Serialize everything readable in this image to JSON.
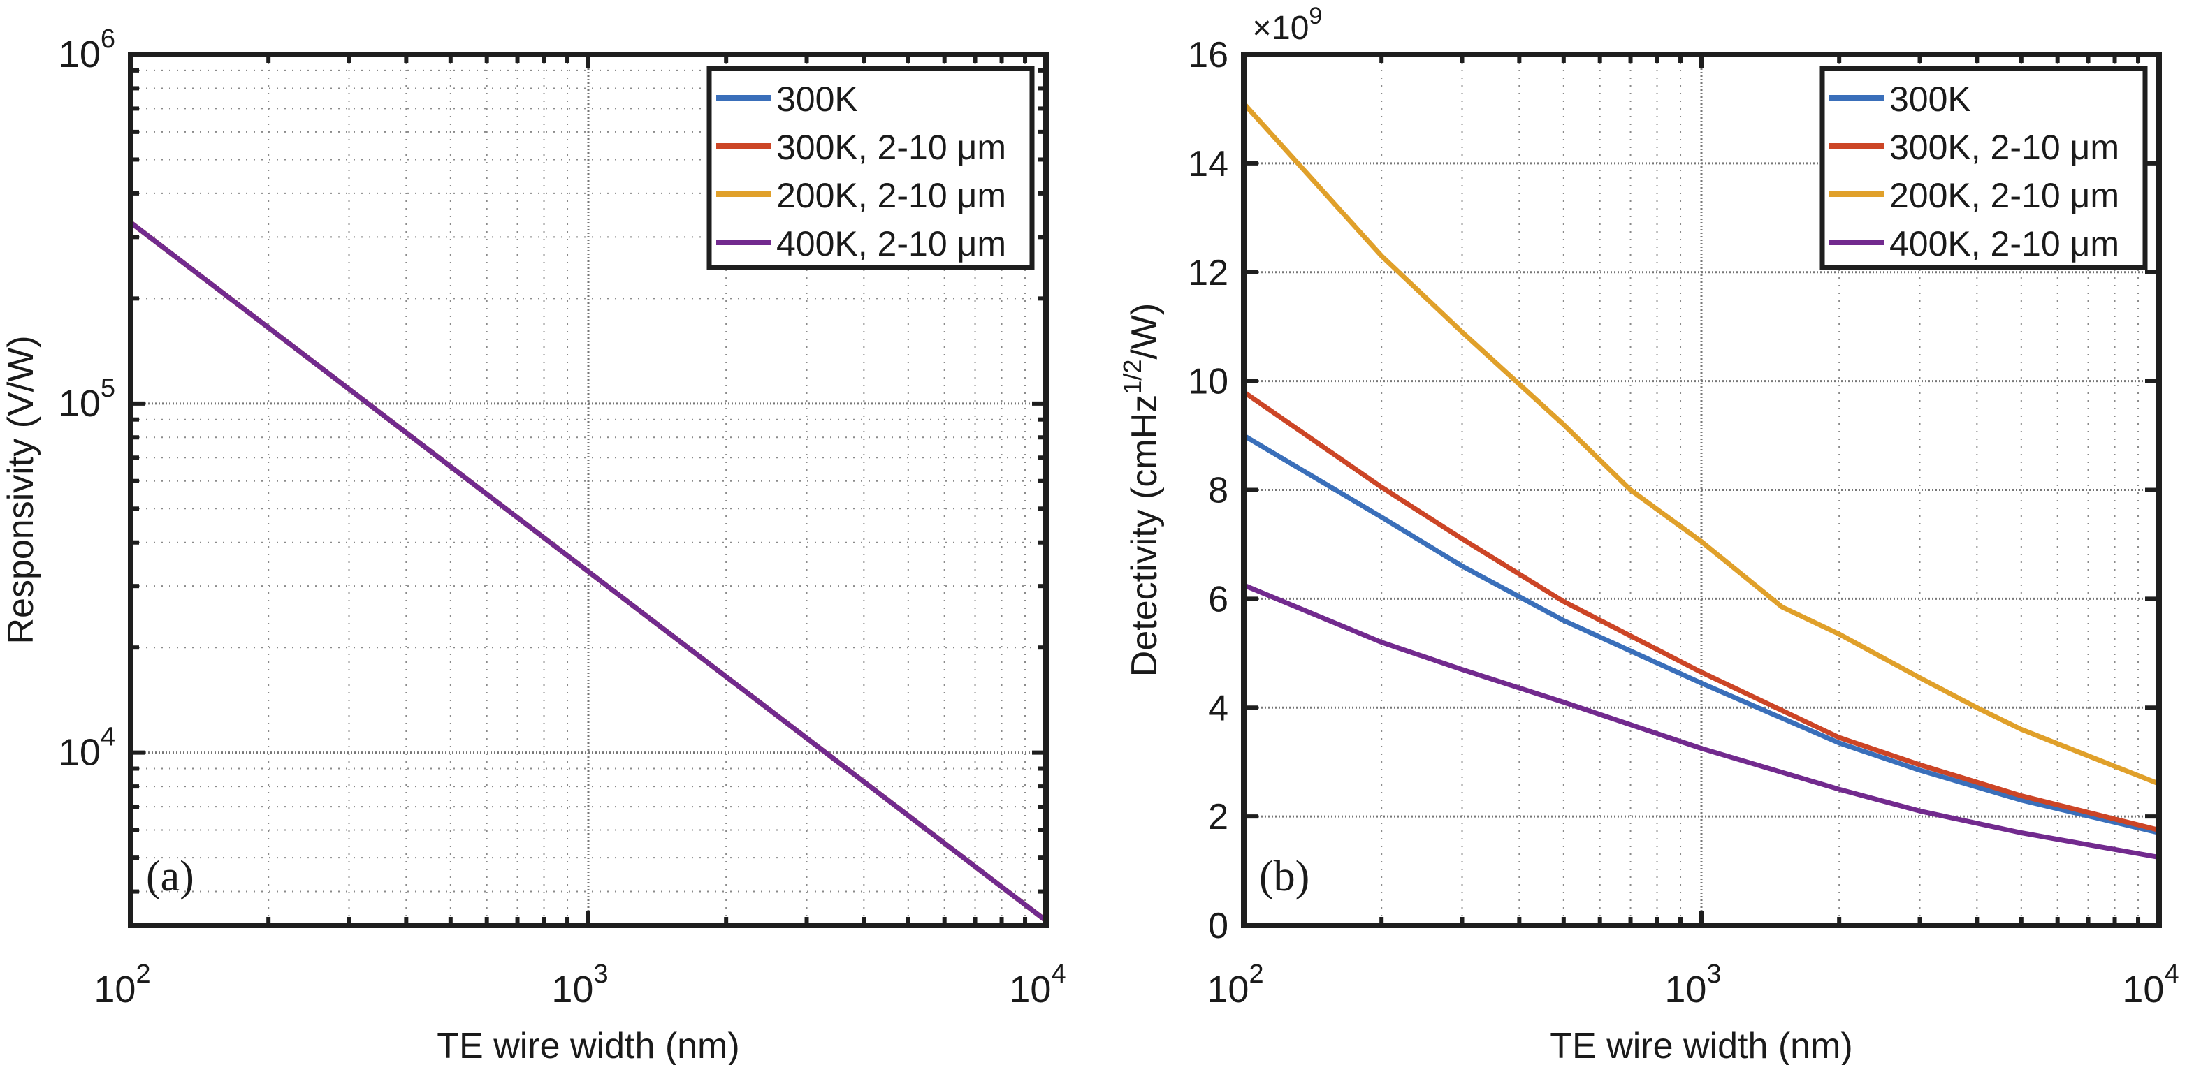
{
  "figure": {
    "panels": [
      "a",
      "b"
    ]
  },
  "chart_data": [
    {
      "type": "line",
      "panel_label": "(a)",
      "title": "",
      "xlabel": "TE wire width (nm)",
      "ylabel": "Responsivity  (V/W)",
      "xscale": "log",
      "yscale": "log",
      "xlim": [
        100,
        10000
      ],
      "ylim": [
        3200,
        1000000
      ],
      "x_ticks": [
        {
          "value": 100,
          "base": "10",
          "exp": "2"
        },
        {
          "value": 1000,
          "base": "10",
          "exp": "3"
        },
        {
          "value": 10000,
          "base": "10",
          "exp": "4"
        }
      ],
      "y_ticks": [
        {
          "value": 10000,
          "base": "10",
          "exp": "4"
        },
        {
          "value": 100000,
          "base": "10",
          "exp": "5"
        },
        {
          "value": 1000000,
          "base": "10",
          "exp": "6"
        }
      ],
      "grid": true,
      "minor_grid": true,
      "legend_position": "top-right",
      "legend": [
        {
          "label": "300K",
          "color": "#3a6fba"
        },
        {
          "label": "300K, 2-10  μm",
          "color": "#cc4526"
        },
        {
          "label": "200K, 2-10  μm",
          "color": "#e0a02a"
        },
        {
          "label": "400K, 2-10  μm",
          "color": "#722a8e"
        }
      ],
      "series": [
        {
          "name": "300K",
          "color": "#3a6fba",
          "x": [
            100,
            10000
          ],
          "y": [
            330000,
            3300
          ]
        },
        {
          "name": "300K, 2-10 μm",
          "color": "#cc4526",
          "x": [
            100,
            10000
          ],
          "y": [
            330000,
            3300
          ]
        },
        {
          "name": "200K, 2-10 μm",
          "color": "#e0a02a",
          "x": [
            100,
            10000
          ],
          "y": [
            330000,
            3300
          ]
        },
        {
          "name": "400K, 2-10 μm",
          "color": "#722a8e",
          "x": [
            100,
            10000
          ],
          "y": [
            330000,
            3300
          ]
        }
      ]
    },
    {
      "type": "line",
      "panel_label": "(b)",
      "title": "",
      "xlabel": "TE wire width (nm)",
      "ylabel_main": "Detectivity (cmHz",
      "ylabel_sup": "1/2",
      "ylabel_tail": "/W)",
      "ylabel": "Detectivity (cmHz^1/2/W)",
      "y_multiplier": "×10",
      "y_multiplier_exp": "9",
      "xscale": "log",
      "yscale": "linear",
      "xlim": [
        100,
        10000
      ],
      "ylim": [
        0,
        16
      ],
      "x_ticks": [
        {
          "value": 100,
          "base": "10",
          "exp": "2"
        },
        {
          "value": 1000,
          "base": "10",
          "exp": "3"
        },
        {
          "value": 10000,
          "base": "10",
          "exp": "4"
        }
      ],
      "y_ticks": [
        0,
        2,
        4,
        6,
        8,
        10,
        12,
        14,
        16
      ],
      "y_tick_labels": [
        "0",
        "2",
        "4",
        "6",
        "8",
        "10",
        "12",
        "14",
        "16"
      ],
      "grid": true,
      "minor_grid": true,
      "legend_position": "top-right",
      "legend": [
        {
          "label": "300K",
          "color": "#3a6fba"
        },
        {
          "label": "300K, 2-10  μm",
          "color": "#cc4526"
        },
        {
          "label": "200K, 2-10  μm",
          "color": "#e0a02a"
        },
        {
          "label": "400K, 2-10  μm",
          "color": "#722a8e"
        }
      ],
      "series": [
        {
          "name": "300K",
          "color": "#3a6fba",
          "x": [
            100,
            200,
            300,
            500,
            1000,
            2000,
            3000,
            5000,
            10000
          ],
          "y": [
            9.0,
            7.5,
            6.6,
            5.6,
            4.45,
            3.35,
            2.85,
            2.3,
            1.7
          ]
        },
        {
          "name": "300K, 2-10 μm",
          "color": "#cc4526",
          "x": [
            100,
            200,
            300,
            500,
            1000,
            2000,
            3000,
            5000,
            10000
          ],
          "y": [
            9.8,
            8.05,
            7.1,
            5.95,
            4.65,
            3.45,
            2.95,
            2.38,
            1.75
          ]
        },
        {
          "name": "200K, 2-10 μm",
          "color": "#e0a02a",
          "x": [
            100,
            200,
            300,
            500,
            700,
            1000,
            1500,
            2000,
            3000,
            4000,
            5000,
            10000
          ],
          "y": [
            15.1,
            12.3,
            10.9,
            9.2,
            8.0,
            7.05,
            5.85,
            5.35,
            4.55,
            4.0,
            3.6,
            2.6
          ]
        },
        {
          "name": "400K, 2-10 μm",
          "color": "#722a8e",
          "x": [
            100,
            200,
            300,
            500,
            1000,
            2000,
            3000,
            5000,
            10000
          ],
          "y": [
            6.25,
            5.2,
            4.7,
            4.1,
            3.25,
            2.5,
            2.1,
            1.7,
            1.25
          ]
        }
      ]
    }
  ]
}
